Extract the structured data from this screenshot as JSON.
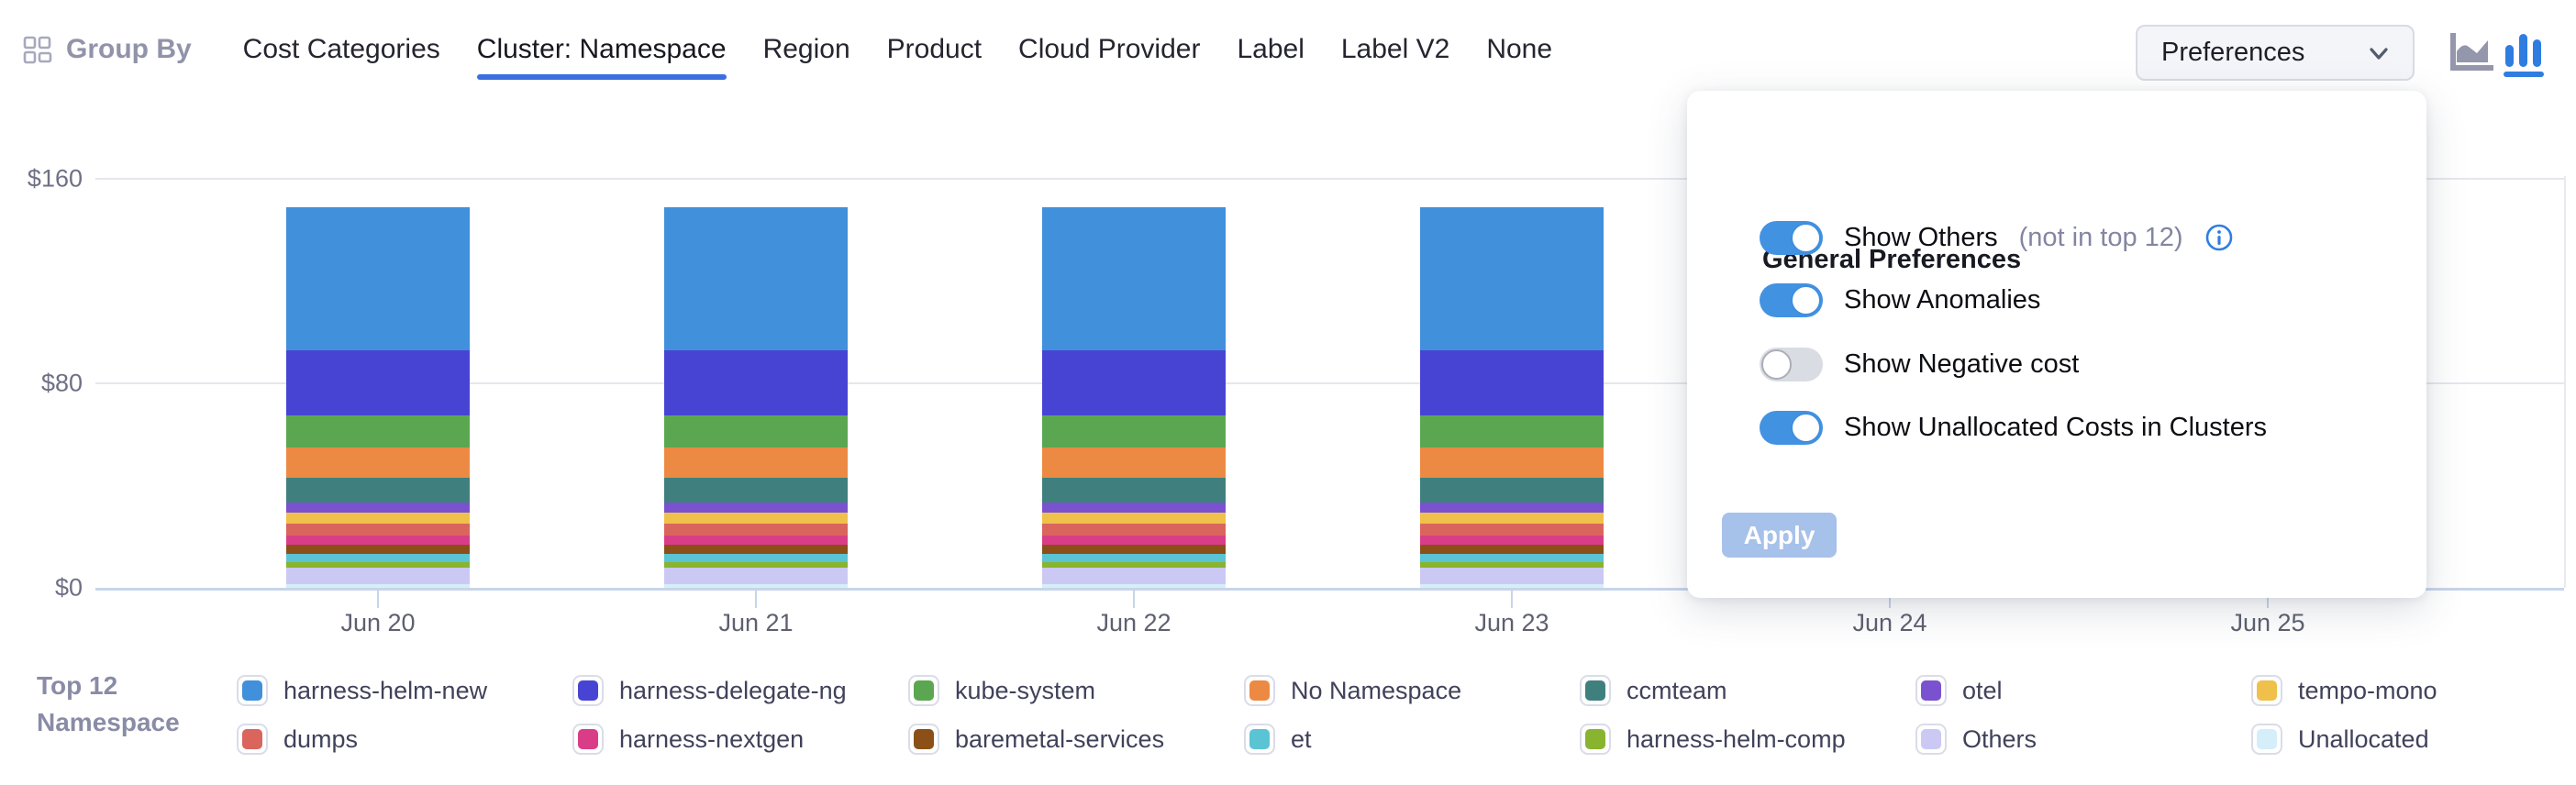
{
  "header": {
    "group_by_label": "Group By",
    "tabs": [
      {
        "label": "Cost Categories",
        "active": false
      },
      {
        "label": "Cluster: Namespace",
        "active": true
      },
      {
        "label": "Region",
        "active": false
      },
      {
        "label": "Product",
        "active": false
      },
      {
        "label": "Cloud Provider",
        "active": false
      },
      {
        "label": "Label",
        "active": false
      },
      {
        "label": "Label V2",
        "active": false
      },
      {
        "label": "None",
        "active": false
      }
    ],
    "preferences_button_label": "Preferences",
    "chart_type_switcher": [
      {
        "name": "area-chart-icon",
        "active": false,
        "color": "#9496ab"
      },
      {
        "name": "bar-chart-icon",
        "active": true,
        "color": "#2f7de1"
      }
    ],
    "accent_color": "#3b6fe0"
  },
  "preferences_panel": {
    "title": "General Preferences",
    "toggles": [
      {
        "label": "Show Others",
        "suffix": "(not in top 12)",
        "has_info_icon": true,
        "on": true
      },
      {
        "label": "Show Anomalies",
        "suffix": "",
        "has_info_icon": false,
        "on": true
      },
      {
        "label": "Show Negative cost",
        "suffix": "",
        "has_info_icon": false,
        "on": false
      },
      {
        "label": "Show Unallocated Costs in Clusters",
        "suffix": "",
        "has_info_icon": false,
        "on": true
      }
    ],
    "apply_label": "Apply",
    "apply_enabled": false,
    "toggle_on_color": "#4292e2",
    "info_icon_color": "#2f7de1"
  },
  "legend": {
    "title": "Top 12 Namespace"
  },
  "chart_data": {
    "type": "bar",
    "stacked": true,
    "title": "",
    "xlabel": "",
    "ylabel": "",
    "categories": [
      "Jun 20",
      "Jun 21",
      "Jun 22",
      "Jun 23",
      "Jun 24",
      "Jun 25"
    ],
    "categories_with_visible_bars": [
      "Jun 20",
      "Jun 21",
      "Jun 22",
      "Jun 23"
    ],
    "note": "Bars for Jun 24 and Jun 25 are hidden behind the open Preferences panel; visible bars are all ~$149 total.",
    "ylim": [
      0,
      160
    ],
    "y_ticks": [
      {
        "value": 0,
        "label": "$0"
      },
      {
        "value": 80,
        "label": "$80"
      },
      {
        "value": 160,
        "label": "$160"
      }
    ],
    "grid": true,
    "legend_position": "bottom",
    "series": [
      {
        "name": "harness-helm-new",
        "color": "#4090dc",
        "values": [
          56.0,
          56.0,
          56.0,
          56.0
        ]
      },
      {
        "name": "harness-delegate-ng",
        "color": "#4744d4",
        "values": [
          25.5,
          25.5,
          25.5,
          25.5
        ]
      },
      {
        "name": "kube-system",
        "color": "#5ba751",
        "values": [
          12.5,
          12.5,
          12.5,
          12.5
        ]
      },
      {
        "name": "No Namespace",
        "color": "#ec8a43",
        "values": [
          12.0,
          12.0,
          12.0,
          12.0
        ]
      },
      {
        "name": "ccmteam",
        "color": "#3f807e",
        "values": [
          9.5,
          9.5,
          9.5,
          9.5
        ]
      },
      {
        "name": "otel",
        "color": "#7a52cf",
        "values": [
          4.2,
          4.2,
          4.2,
          4.2
        ]
      },
      {
        "name": "tempo-mono",
        "color": "#efc14a",
        "values": [
          4.2,
          4.2,
          4.2,
          4.2
        ]
      },
      {
        "name": "dumps",
        "color": "#d9655c",
        "values": [
          4.5,
          4.5,
          4.5,
          4.5
        ]
      },
      {
        "name": "harness-nextgen",
        "color": "#da3d87",
        "values": [
          3.8,
          3.8,
          3.8,
          3.8
        ]
      },
      {
        "name": "baremetal-services",
        "color": "#8a5017",
        "values": [
          3.6,
          3.6,
          3.6,
          3.6
        ]
      },
      {
        "name": "et",
        "color": "#5ac4d4",
        "values": [
          3.3,
          3.3,
          3.3,
          3.3
        ]
      },
      {
        "name": "harness-helm-comp",
        "color": "#88b42f",
        "values": [
          2.0,
          2.0,
          2.0,
          2.0
        ]
      },
      {
        "name": "Others",
        "color": "#cbc9f4",
        "values": [
          6.3,
          6.3,
          6.3,
          6.3
        ]
      },
      {
        "name": "Unallocated",
        "color": "#d4eefa",
        "values": [
          1.6,
          1.6,
          1.6,
          1.6
        ]
      }
    ]
  }
}
